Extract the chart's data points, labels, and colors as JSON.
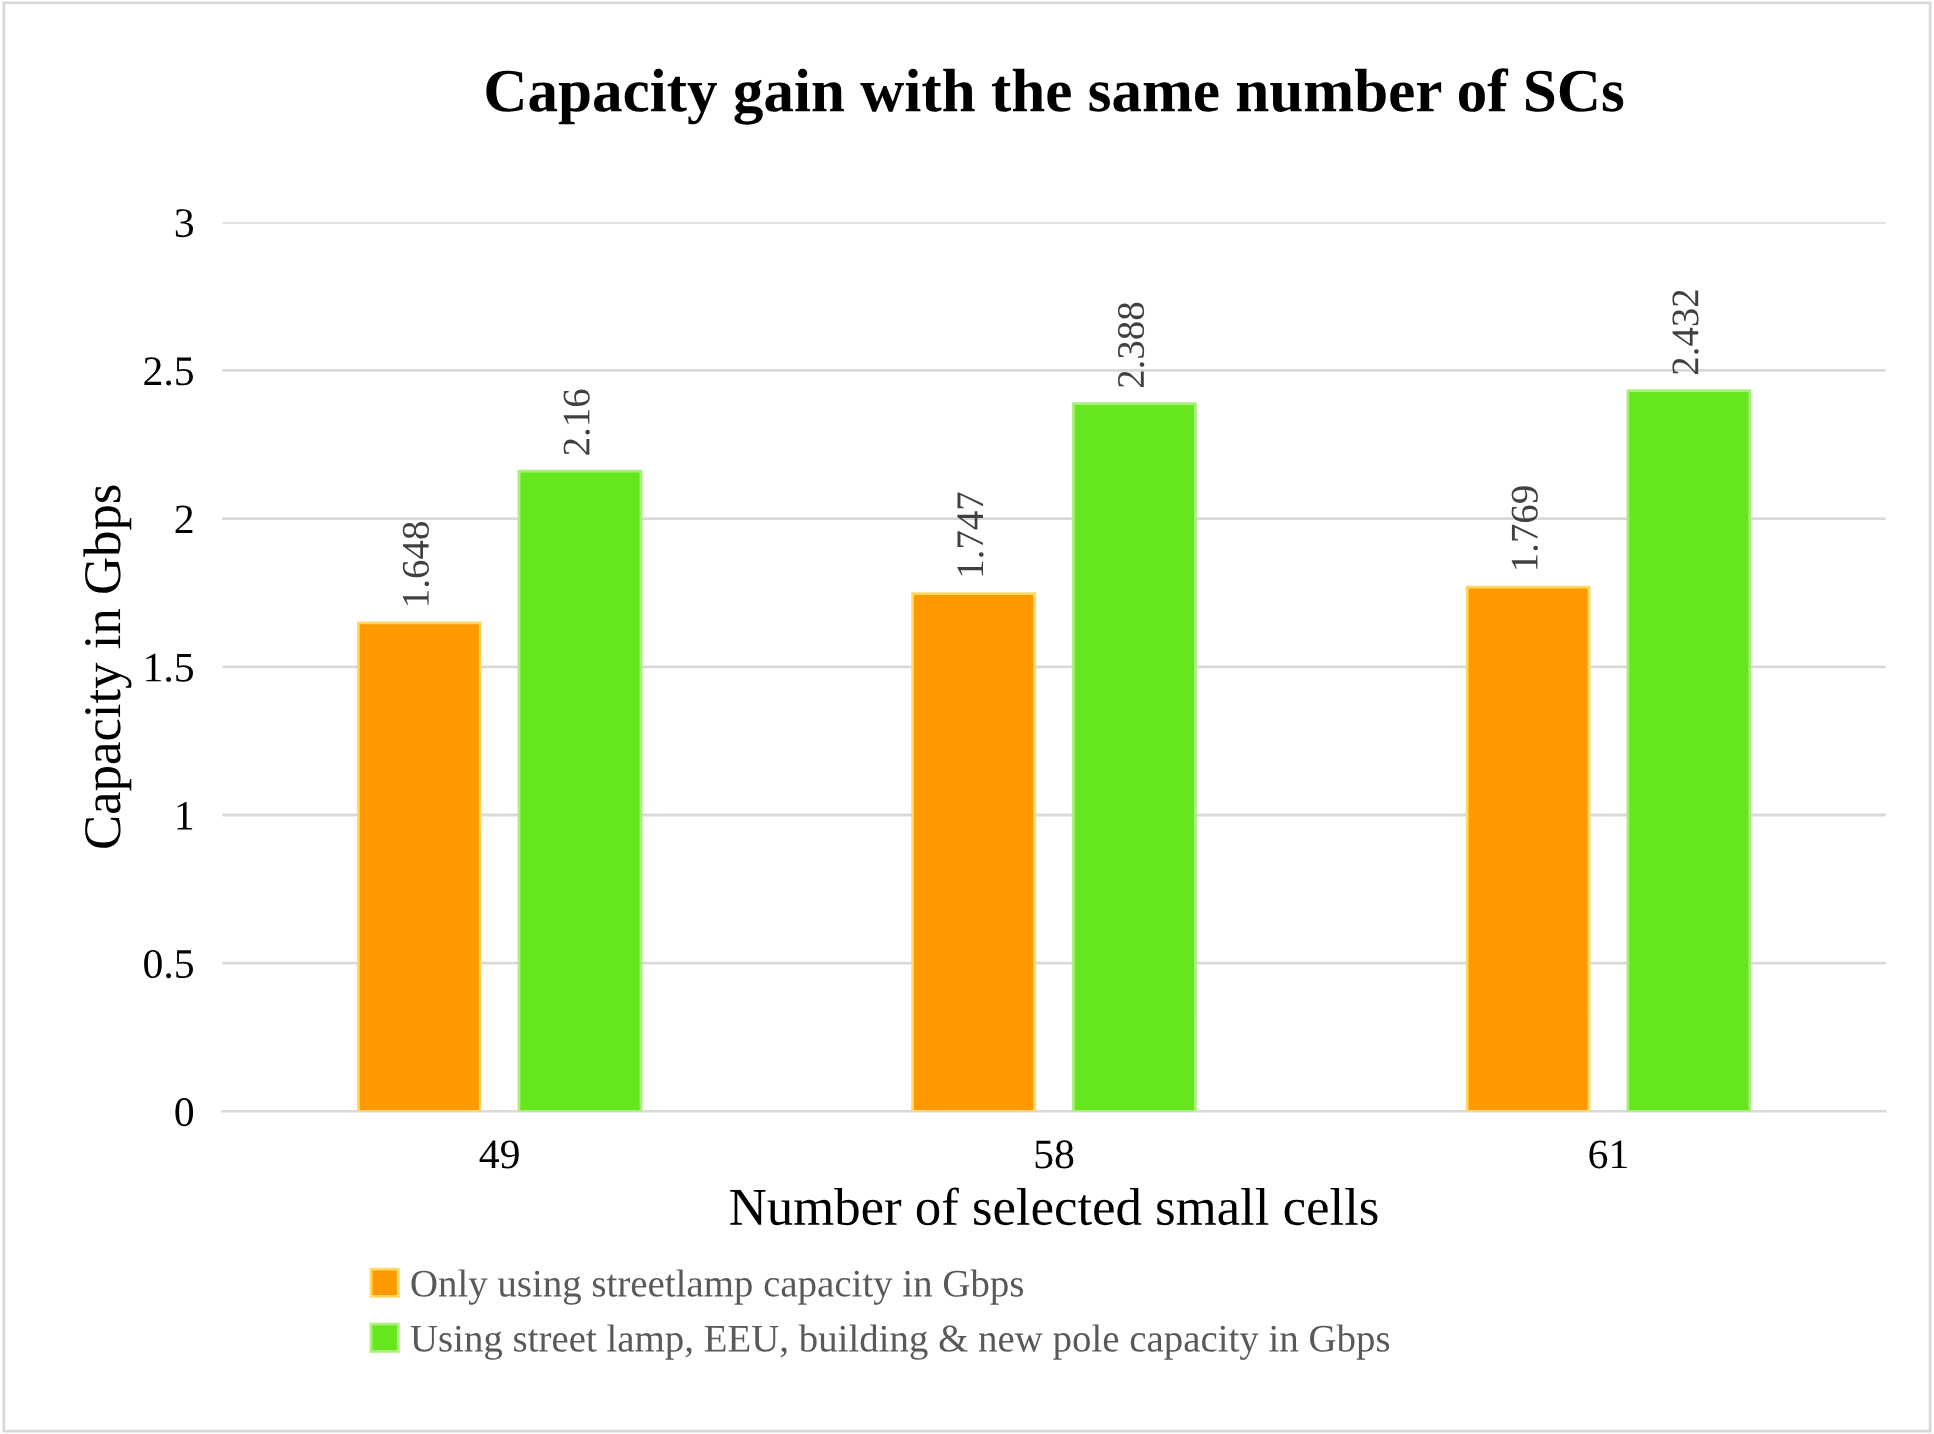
{
  "chart_data": {
    "type": "bar",
    "title": "Capacity gain with the same number of SCs",
    "xlabel": "Number of selected small cells",
    "ylabel": "Capacity in Gbps",
    "categories": [
      "49",
      "58",
      "61"
    ],
    "series": [
      {
        "name": "Only using streetlamp capacity in Gbps",
        "color": "#ff9900",
        "values": [
          1.648,
          1.747,
          1.769
        ]
      },
      {
        "name": "Using street lamp, EEU, building & new pole capacity in Gbps",
        "color": "#66e61e",
        "values": [
          2.16,
          2.388,
          2.432
        ]
      }
    ],
    "ylim": [
      0,
      3
    ],
    "yticks": [
      0,
      0.5,
      1,
      1.5,
      2,
      2.5,
      3
    ],
    "grid": "y",
    "legend": "bottom",
    "data_labels": true
  }
}
